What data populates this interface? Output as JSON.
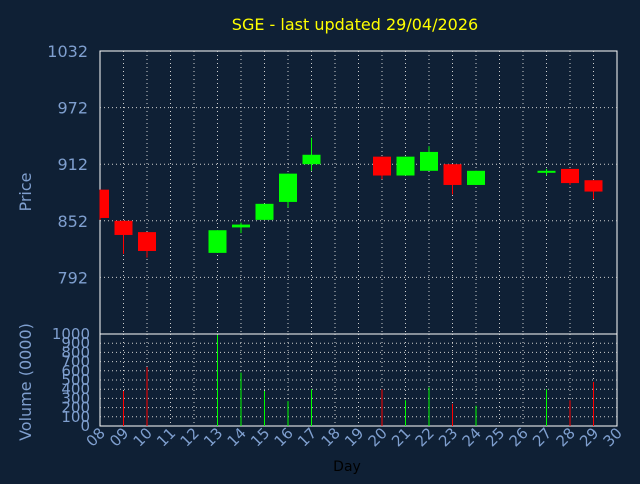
{
  "chart_data": [
    {
      "type": "candlestick",
      "title": "SGE - last updated 29/04/2026",
      "ylabel": "Price",
      "xlabel": "Day",
      "ylim": [
        732,
        1032
      ],
      "yticks": [
        1032,
        972,
        912,
        852,
        792
      ],
      "x_categories": [
        "08",
        "09",
        "10",
        "11",
        "12",
        "13",
        "14",
        "15",
        "16",
        "17",
        "18",
        "19",
        "20",
        "21",
        "22",
        "23",
        "24",
        "25",
        "26",
        "27",
        "28",
        "29",
        "30"
      ],
      "grid": true,
      "colors": {
        "up": "#00ff00",
        "down": "#ff0000",
        "title": "#ffff00",
        "axis_text": "#7f9fcf",
        "grid": "#cfcfcf",
        "background": "#0f2035"
      },
      "candles": [
        {
          "day": "08",
          "open": 885,
          "high": 885,
          "low": 853,
          "close": 855
        },
        {
          "day": "09",
          "open": 852,
          "high": 852,
          "low": 817,
          "close": 837
        },
        {
          "day": "10",
          "open": 840,
          "high": 840,
          "low": 813,
          "close": 820
        },
        {
          "day": "13",
          "open": 818,
          "high": 842,
          "low": 818,
          "close": 842
        },
        {
          "day": "14",
          "open": 845,
          "high": 850,
          "low": 839,
          "close": 848
        },
        {
          "day": "15",
          "open": 853,
          "high": 870,
          "low": 853,
          "close": 870
        },
        {
          "day": "16",
          "open": 872,
          "high": 902,
          "low": 866,
          "close": 902
        },
        {
          "day": "17",
          "open": 912,
          "high": 940,
          "low": 905,
          "close": 922
        },
        {
          "day": "20",
          "open": 920,
          "high": 920,
          "low": 896,
          "close": 900
        },
        {
          "day": "21",
          "open": 900,
          "high": 920,
          "low": 900,
          "close": 920
        },
        {
          "day": "22",
          "open": 905,
          "high": 931,
          "low": 905,
          "close": 925
        },
        {
          "day": "23",
          "open": 912,
          "high": 912,
          "low": 880,
          "close": 890
        },
        {
          "day": "24",
          "open": 890,
          "high": 905,
          "low": 890,
          "close": 905
        },
        {
          "day": "27",
          "open": 904,
          "high": 907,
          "low": 900,
          "close": 905
        },
        {
          "day": "28",
          "open": 907,
          "high": 907,
          "low": 890,
          "close": 892
        },
        {
          "day": "29",
          "open": 895,
          "high": 895,
          "low": 875,
          "close": 883
        }
      ]
    },
    {
      "type": "bar",
      "ylabel": "Volume (0000)",
      "ylim": [
        0,
        1000
      ],
      "yticks": [
        1000,
        900,
        800,
        700,
        600,
        500,
        400,
        300,
        200,
        100,
        0
      ],
      "x_categories": [
        "08",
        "09",
        "10",
        "11",
        "12",
        "13",
        "14",
        "15",
        "16",
        "17",
        "18",
        "19",
        "20",
        "21",
        "22",
        "23",
        "24",
        "25",
        "26",
        "27",
        "28",
        "29",
        "30"
      ],
      "volumes": [
        {
          "day": "09",
          "value": 380,
          "direction": "down"
        },
        {
          "day": "10",
          "value": 640,
          "direction": "down"
        },
        {
          "day": "13",
          "value": 990,
          "direction": "up"
        },
        {
          "day": "14",
          "value": 580,
          "direction": "up"
        },
        {
          "day": "15",
          "value": 380,
          "direction": "up"
        },
        {
          "day": "16",
          "value": 270,
          "direction": "up"
        },
        {
          "day": "17",
          "value": 400,
          "direction": "up"
        },
        {
          "day": "20",
          "value": 400,
          "direction": "down"
        },
        {
          "day": "21",
          "value": 280,
          "direction": "up"
        },
        {
          "day": "22",
          "value": 420,
          "direction": "up"
        },
        {
          "day": "23",
          "value": 240,
          "direction": "down"
        },
        {
          "day": "24",
          "value": 220,
          "direction": "up"
        },
        {
          "day": "27",
          "value": 400,
          "direction": "up"
        },
        {
          "day": "28",
          "value": 280,
          "direction": "down"
        },
        {
          "day": "29",
          "value": 480,
          "direction": "down"
        }
      ]
    }
  ]
}
